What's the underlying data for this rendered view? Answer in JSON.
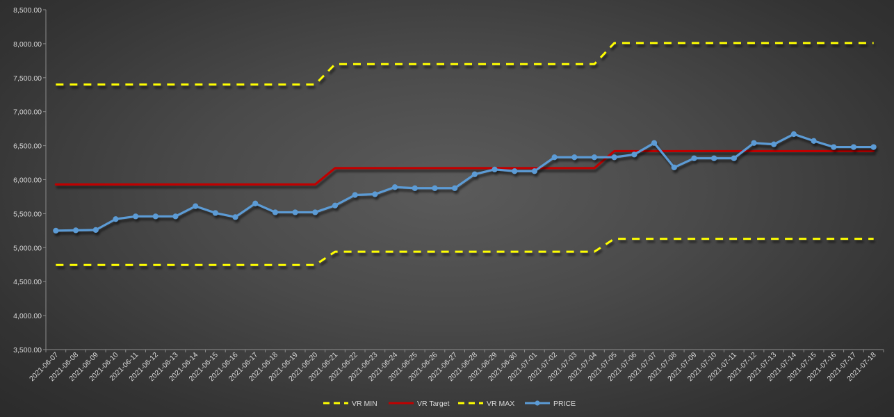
{
  "chart_data": {
    "type": "line",
    "title": "",
    "xlabel": "",
    "ylabel": "",
    "ylim": [
      3500,
      8500
    ],
    "ystep": 500,
    "ytick_format": "0,000.00",
    "grid": false,
    "legend": "bottom",
    "categories": [
      "2021-06-07",
      "2021-06-08",
      "2021-06-09",
      "2021-06-10",
      "2021-06-11",
      "2021-06-12",
      "2021-06-13",
      "2021-06-14",
      "2021-06-15",
      "2021-06-16",
      "2021-06-17",
      "2021-06-18",
      "2021-06-19",
      "2021-06-20",
      "2021-06-21",
      "2021-06-22",
      "2021-06-23",
      "2021-06-24",
      "2021-06-25",
      "2021-06-26",
      "2021-06-27",
      "2021-06-28",
      "2021-06-29",
      "2021-06-30",
      "2021-07-01",
      "2021-07-02",
      "2021-07-03",
      "2021-07-04",
      "2021-07-05",
      "2021-07-06",
      "2021-07-07",
      "2021-07-08",
      "2021-07-09",
      "2021-07-10",
      "2021-07-11",
      "2021-07-12",
      "2021-07-13",
      "2021-07-14",
      "2021-07-15",
      "2021-07-16",
      "2021-07-17",
      "2021-07-18"
    ],
    "series": [
      {
        "name": "VR MIN",
        "style": "dashed",
        "color": "#ffff00",
        "markers": false,
        "values": [
          4745,
          4745,
          4745,
          4745,
          4745,
          4745,
          4745,
          4745,
          4745,
          4745,
          4745,
          4745,
          4745,
          4745,
          4940,
          4940,
          4940,
          4940,
          4940,
          4940,
          4940,
          4940,
          4940,
          4940,
          4940,
          4940,
          4940,
          4940,
          5130,
          5130,
          5130,
          5130,
          5130,
          5130,
          5130,
          5130,
          5130,
          5130,
          5130,
          5130,
          5130,
          5130
        ]
      },
      {
        "name": "VR Target",
        "style": "solid",
        "color": "#c00000",
        "markers": false,
        "values": [
          5930,
          5930,
          5930,
          5930,
          5930,
          5930,
          5930,
          5930,
          5930,
          5930,
          5930,
          5930,
          5930,
          5930,
          6170,
          6170,
          6170,
          6170,
          6170,
          6170,
          6170,
          6170,
          6170,
          6170,
          6170,
          6170,
          6170,
          6170,
          6420,
          6420,
          6420,
          6420,
          6420,
          6420,
          6420,
          6420,
          6420,
          6420,
          6420,
          6420,
          6420,
          6420
        ]
      },
      {
        "name": "VR MAX",
        "style": "dashed",
        "color": "#ffff00",
        "markers": false,
        "values": [
          7400,
          7400,
          7400,
          7400,
          7400,
          7400,
          7400,
          7400,
          7400,
          7400,
          7400,
          7400,
          7400,
          7400,
          7700,
          7700,
          7700,
          7700,
          7700,
          7700,
          7700,
          7700,
          7700,
          7700,
          7700,
          7700,
          7700,
          7700,
          8010,
          8010,
          8010,
          8010,
          8010,
          8010,
          8010,
          8010,
          8010,
          8010,
          8010,
          8010,
          8010,
          8010
        ]
      },
      {
        "name": "PRICE",
        "style": "solid",
        "color": "#5b9bd5",
        "markers": true,
        "values": [
          5250,
          5255,
          5260,
          5420,
          5460,
          5460,
          5460,
          5610,
          5510,
          5450,
          5650,
          5520,
          5520,
          5520,
          5620,
          5775,
          5785,
          5890,
          5875,
          5875,
          5875,
          6080,
          6150,
          6125,
          6125,
          6330,
          6330,
          6330,
          6330,
          6370,
          6540,
          6180,
          6315,
          6315,
          6315,
          6540,
          6520,
          6670,
          6570,
          6480,
          6480,
          6480
        ]
      }
    ]
  }
}
